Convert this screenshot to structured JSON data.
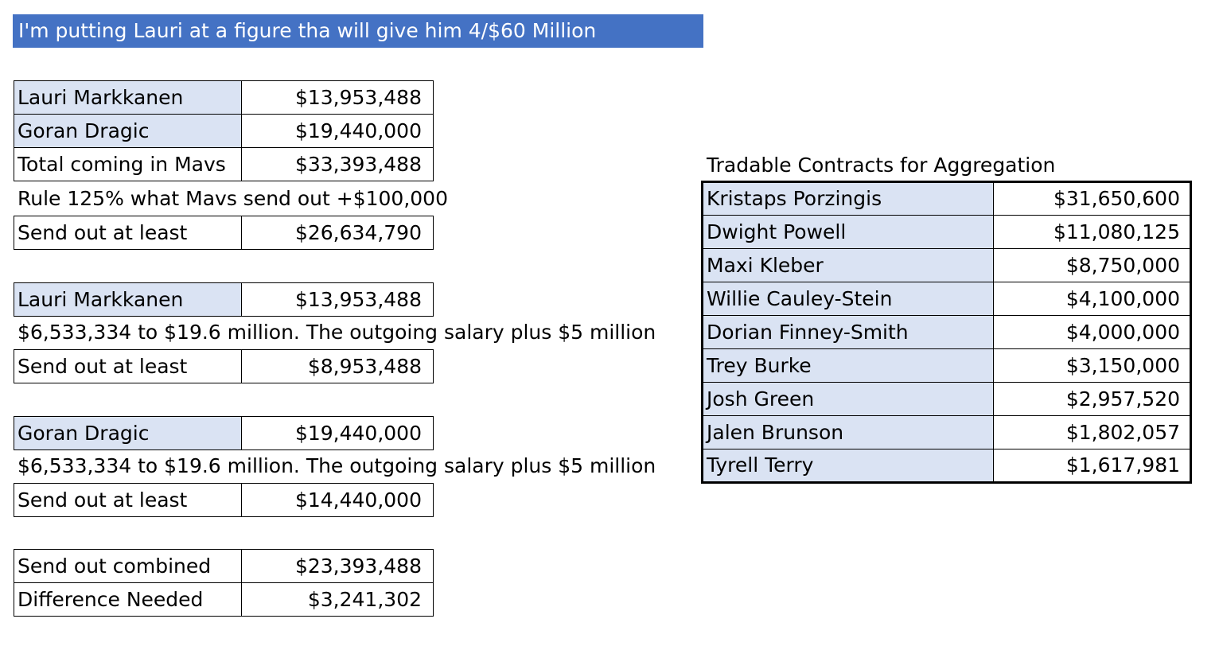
{
  "banner": {
    "text": "I'm putting Lauri at a figure tha will give him 4/$60 Million"
  },
  "incoming": [
    {
      "label": "Lauri Markkanen",
      "value": "$13,953,488"
    },
    {
      "label": "Goran Dragic",
      "value": "$19,440,000"
    },
    {
      "label": "Total coming in Mavs",
      "value": "$33,393,488"
    }
  ],
  "rule_note": "Rule 125% what Mavs send out +$100,000",
  "send_out_1": {
    "label": "Send out at least",
    "value": "$26,634,790"
  },
  "lauri_block": {
    "player": {
      "label": "Lauri Markkanen",
      "value": "$13,953,488"
    },
    "note": "$6,533,334 to $19.6 million. The outgoing salary plus $5 million",
    "send_out": {
      "label": "Send out at least",
      "value": "$8,953,488"
    }
  },
  "goran_block": {
    "player": {
      "label": "Goran Dragic",
      "value": "$19,440,000"
    },
    "note": "$6,533,334 to $19.6 million. The outgoing salary plus $5 million",
    "send_out": {
      "label": "Send out at least",
      "value": "$14,440,000"
    }
  },
  "summary": [
    {
      "label": "Send out combined",
      "value": "$23,393,488"
    },
    {
      "label": "Difference Needed",
      "value": "$3,241,302"
    }
  ],
  "tradable": {
    "title": "Tradable Contracts for Aggregation",
    "rows": [
      {
        "label": "Kristaps Porzingis",
        "value": "$31,650,600"
      },
      {
        "label": "Dwight Powell",
        "value": "$11,080,125"
      },
      {
        "label": "Maxi Kleber",
        "value": "$8,750,000"
      },
      {
        "label": "Willie Cauley-Stein",
        "value": "$4,100,000"
      },
      {
        "label": "Dorian Finney-Smith",
        "value": "$4,000,000"
      },
      {
        "label": "Trey Burke",
        "value": "$3,150,000"
      },
      {
        "label": "Josh Green",
        "value": "$2,957,520"
      },
      {
        "label": "Jalen Brunson",
        "value": "$1,802,057"
      },
      {
        "label": "Tyrell Terry",
        "value": "$1,617,981"
      }
    ]
  }
}
